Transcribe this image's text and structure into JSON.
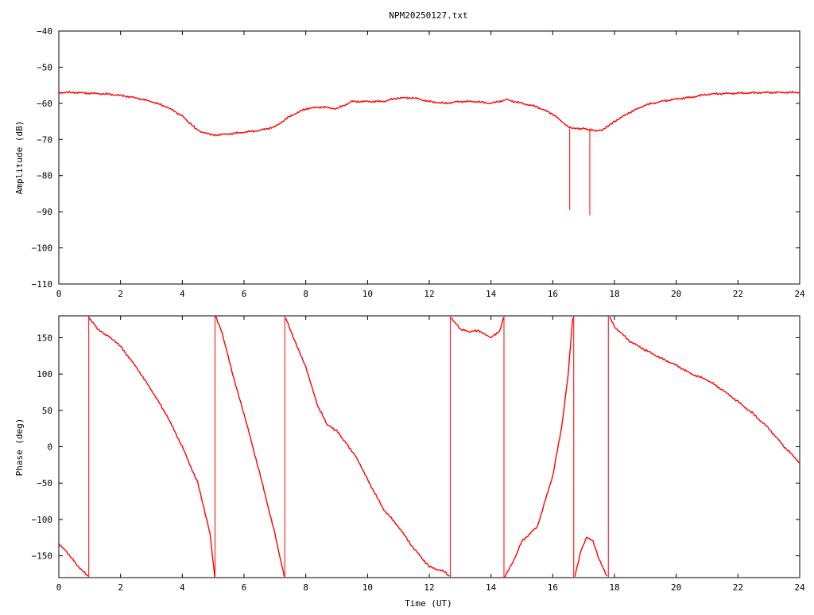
{
  "chart_data": [
    {
      "type": "line",
      "title": "NPM20250127.txt",
      "xlabel": "",
      "ylabel": "Amplitude (dB)",
      "xlim": [
        0,
        24
      ],
      "ylim": [
        -110,
        -40
      ],
      "xticks": [
        0,
        2,
        4,
        6,
        8,
        10,
        12,
        14,
        16,
        18,
        20,
        22,
        24
      ],
      "yticks": [
        -110,
        -100,
        -90,
        -80,
        -70,
        -60,
        -50,
        -40
      ],
      "color": "#ff0000",
      "series": [
        {
          "x": [
            0,
            0.5,
            1.0,
            1.5,
            2.0,
            2.5,
            3.0,
            3.5,
            4.0,
            4.3,
            4.6,
            5.0,
            5.5,
            6.0,
            6.5,
            7.0,
            7.5,
            8.0,
            8.5,
            9.0,
            9.5,
            10.0,
            10.5,
            11.0,
            11.5,
            12.0,
            12.5,
            13.0,
            13.5,
            14.0,
            14.5,
            15.0,
            15.5,
            16.0,
            16.3,
            16.5,
            16.7,
            17.0,
            17.3,
            17.6,
            18.0,
            18.5,
            19.0,
            19.5,
            20.0,
            20.5,
            21.0,
            21.5,
            22.0,
            22.5,
            23.0,
            23.5,
            24.0
          ],
          "values": [
            -57,
            -57,
            -57.2,
            -57.4,
            -57.8,
            -58.5,
            -59.5,
            -61,
            -63.5,
            -66,
            -68,
            -68.8,
            -68.5,
            -68,
            -67.5,
            -66.5,
            -63.5,
            -61.5,
            -61,
            -61.5,
            -59.5,
            -59.5,
            -59.5,
            -58.5,
            -58.5,
            -59.5,
            -60,
            -59.5,
            -59.5,
            -60,
            -59,
            -60,
            -61,
            -63,
            -65,
            -66.5,
            -67,
            -67,
            -67.5,
            -67.5,
            -65,
            -62.5,
            -60.5,
            -59.5,
            -58.8,
            -58.3,
            -57.5,
            -57.3,
            -57.2,
            -57.1,
            -57,
            -57,
            -57
          ]
        }
      ],
      "spikes": [
        {
          "x": 16.55,
          "y": -89.5
        },
        {
          "x": 17.2,
          "y": -91
        }
      ]
    },
    {
      "type": "line",
      "xlabel": "Time (UT)",
      "ylabel": "Phase (deg)",
      "xlim": [
        0,
        24
      ],
      "ylim": [
        -180,
        180
      ],
      "xticks": [
        0,
        2,
        4,
        6,
        8,
        10,
        12,
        14,
        16,
        18,
        20,
        22,
        24
      ],
      "yticks": [
        -150,
        -100,
        -50,
        0,
        50,
        100,
        150
      ],
      "color": "#ff0000",
      "segments": [
        {
          "x": [
            0,
            0.3,
            0.6,
            0.95
          ],
          "values": [
            -133,
            -147,
            -163,
            -179
          ]
        },
        {
          "x": [
            0.97,
            1.3,
            1.6,
            1.8,
            2.0,
            2.5,
            3.0,
            3.5,
            4.0,
            4.5,
            4.9,
            5.05
          ],
          "values": [
            178,
            160,
            152,
            145,
            138,
            110,
            78,
            43,
            0,
            -50,
            -120,
            -178
          ]
        },
        {
          "x": [
            5.08,
            5.3,
            5.6,
            6.0,
            6.5,
            7.0,
            7.3
          ],
          "values": [
            180,
            155,
            105,
            45,
            -35,
            -120,
            -178
          ]
        },
        {
          "x": [
            7.35,
            7.6,
            8.0,
            8.4,
            8.7,
            9.0,
            9.3,
            9.6,
            10.0,
            10.5,
            11.0,
            11.5,
            12.0,
            12.5,
            12.65
          ],
          "values": [
            178,
            150,
            110,
            55,
            30,
            22,
            5,
            -12,
            -45,
            -85,
            -110,
            -140,
            -165,
            -172,
            -178
          ]
        },
        {
          "x": [
            12.7,
            13.0,
            13.3,
            13.6,
            14.0,
            14.3,
            14.4
          ],
          "values": [
            178,
            162,
            158,
            160,
            150,
            160,
            178
          ]
        },
        {
          "x": [
            14.45,
            14.7,
            15.0,
            15.5,
            16.0,
            16.3,
            16.5,
            16.65
          ],
          "values": [
            -178,
            -160,
            -130,
            -110,
            -40,
            30,
            100,
            178
          ]
        },
        {
          "x": [
            16.72,
            16.9,
            17.1,
            17.3,
            17.5,
            17.75
          ],
          "values": [
            -178,
            -145,
            -125,
            -130,
            -155,
            -178
          ]
        },
        {
          "x": [
            17.85,
            18.0,
            18.5,
            19.0,
            19.5,
            20.0,
            20.5,
            21.0,
            21.5,
            22.0,
            22.5,
            23.0,
            23.5,
            24.0
          ],
          "values": [
            178,
            165,
            145,
            133,
            122,
            112,
            100,
            92,
            78,
            62,
            45,
            25,
            0,
            -22
          ]
        }
      ],
      "wraps": [
        0.97,
        5.06,
        7.32,
        12.68,
        14.42,
        16.68,
        17.8
      ]
    }
  ]
}
